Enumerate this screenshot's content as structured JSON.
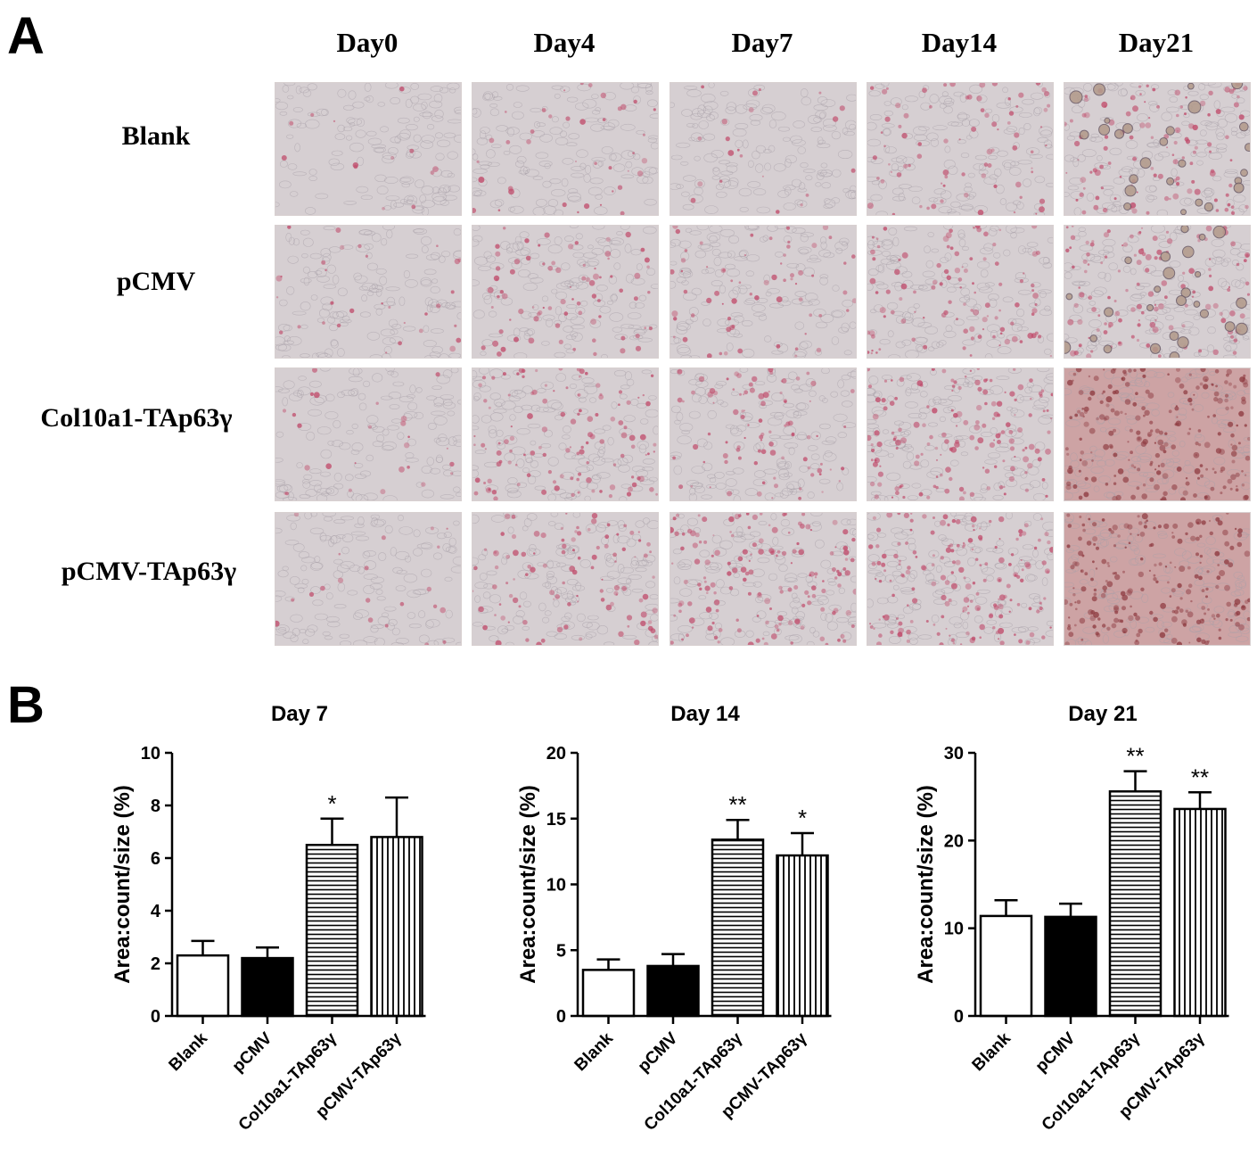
{
  "panel_a": {
    "letter": "A",
    "columns": [
      "Day0",
      "Day4",
      "Day7",
      "Day14",
      "Day21"
    ],
    "rows": [
      "Blank",
      "pCMV",
      "Col10a1-TAp63γ",
      "pCMV-TAp63γ"
    ],
    "stain_intensity": [
      [
        0.05,
        0.15,
        0.08,
        0.3,
        0.45
      ],
      [
        0.12,
        0.3,
        0.25,
        0.4,
        0.5
      ],
      [
        0.1,
        0.45,
        0.35,
        0.6,
        0.9
      ],
      [
        0.08,
        0.4,
        0.6,
        0.7,
        0.85
      ]
    ],
    "colors": {
      "tissue_base": "#d6cfd2",
      "stain": "#c04a6a",
      "late_stain": "#a4585a"
    }
  },
  "panel_b": {
    "letter": "B",
    "colors": {
      "axis": "#000000",
      "solid_fill": "#000000",
      "open_fill": "#ffffff"
    }
  },
  "chart_data": [
    {
      "type": "bar",
      "title": "Day 7",
      "ylabel": "Area:count/size (%)",
      "categories": [
        "Blank",
        "pCMV",
        "Col10a1-TAp63γ",
        "pCMV-TAp63γ"
      ],
      "values": [
        2.3,
        2.2,
        6.5,
        6.8
      ],
      "errors": [
        0.55,
        0.4,
        1.0,
        1.5
      ],
      "significance": [
        "",
        "",
        "*",
        ""
      ],
      "fills": [
        "open",
        "solid",
        "horizontal",
        "vertical"
      ],
      "ylim": [
        0,
        10
      ],
      "yticks": [
        "0",
        "2",
        "4",
        "6",
        "8",
        "10"
      ]
    },
    {
      "type": "bar",
      "title": "Day 14",
      "ylabel": "Area:count/size (%)",
      "categories": [
        "Blank",
        "pCMV",
        "Col10a1-TAp63γ",
        "pCMV-TAp63γ"
      ],
      "values": [
        3.5,
        3.8,
        13.4,
        12.2
      ],
      "errors": [
        0.8,
        0.9,
        1.5,
        1.7
      ],
      "significance": [
        "",
        "",
        "**",
        "*"
      ],
      "fills": [
        "open",
        "solid",
        "horizontal",
        "vertical"
      ],
      "ylim": [
        0,
        20
      ],
      "yticks": [
        "0",
        "5",
        "10",
        "15",
        "20"
      ]
    },
    {
      "type": "bar",
      "title": "Day 21",
      "ylabel": "Area:count/size (%)",
      "categories": [
        "Blank",
        "pCMV",
        "Col10a1-TAp63γ",
        "pCMV-TAp63γ"
      ],
      "values": [
        11.4,
        11.3,
        25.6,
        23.6
      ],
      "errors": [
        1.8,
        1.5,
        2.3,
        1.9
      ],
      "significance": [
        "",
        "",
        "**",
        "**"
      ],
      "fills": [
        "open",
        "solid",
        "horizontal",
        "vertical"
      ],
      "ylim": [
        0,
        30
      ],
      "yticks": [
        "0",
        "10",
        "20",
        "30"
      ]
    }
  ]
}
